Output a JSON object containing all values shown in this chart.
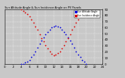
{
  "title": "Sun Altitude Angle & Sun Incidence Angle on PV Panels",
  "legend_blue": "Sun Altitude Angle",
  "legend_red": "Sun Incidence Angle",
  "blue_color": "#0000dd",
  "red_color": "#dd0000",
  "background_color": "#c8c8c8",
  "plot_bg_color": "#c8c8c8",
  "ylim": [
    0,
    90
  ],
  "xlim": [
    0,
    24
  ],
  "x_ticks": [
    0,
    2,
    4,
    6,
    8,
    10,
    12,
    14,
    16,
    18,
    20,
    22,
    24
  ],
  "y_ticks": [
    0,
    10,
    20,
    30,
    40,
    50,
    60,
    70,
    80,
    90
  ],
  "blue_x": [
    4,
    4.5,
    5,
    5.5,
    6,
    6.5,
    7,
    7.5,
    8,
    8.5,
    9,
    9.5,
    10,
    10.5,
    11,
    11.5,
    12,
    12.5,
    13,
    13.5,
    14,
    14.5,
    15,
    15.5,
    16,
    16.5,
    17,
    17.5,
    18,
    18.5,
    19,
    19.5,
    20
  ],
  "blue_y": [
    0,
    0,
    2,
    4,
    7,
    11,
    16,
    21,
    27,
    33,
    38,
    44,
    49,
    53,
    57,
    60,
    62,
    63,
    62,
    60,
    57,
    53,
    49,
    44,
    38,
    33,
    27,
    21,
    16,
    11,
    7,
    4,
    0
  ],
  "red_x": [
    4,
    4.5,
    5,
    5.5,
    6,
    6.5,
    7,
    7.5,
    8,
    8.5,
    9,
    9.5,
    10,
    10.5,
    11,
    11.5,
    12,
    12.5,
    13,
    13.5,
    14,
    14.5,
    15,
    15.5,
    16,
    16.5,
    17,
    17.5,
    18,
    18.5,
    19,
    19.5,
    20
  ],
  "red_y": [
    90,
    88,
    85,
    82,
    78,
    73,
    68,
    62,
    56,
    49,
    43,
    37,
    31,
    26,
    21,
    17,
    14,
    15,
    18,
    21,
    26,
    31,
    37,
    43,
    49,
    56,
    62,
    68,
    73,
    78,
    82,
    85,
    88
  ]
}
